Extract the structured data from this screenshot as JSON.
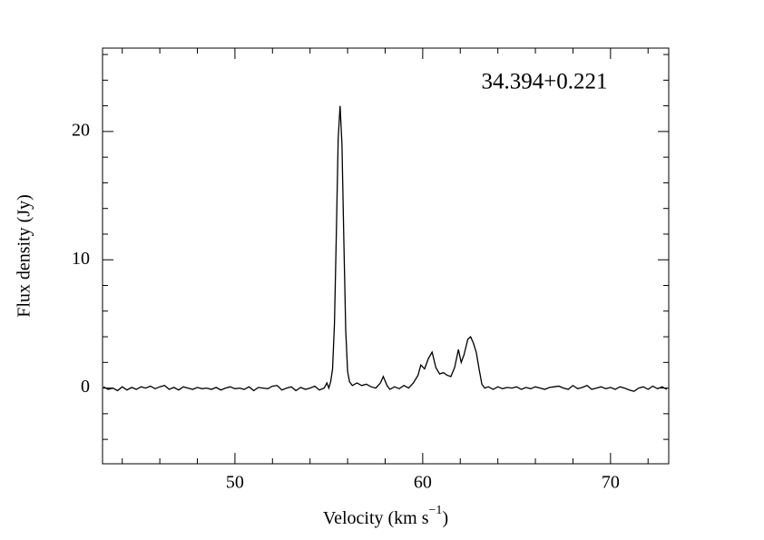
{
  "chart_data": {
    "type": "line",
    "annotation": "34.394+0.221",
    "xlabel": {
      "text": "Velocity (km s",
      "sup": "−1",
      "end": ")"
    },
    "ylabel": "Flux density (Jy)",
    "xlim": [
      42.95,
      73.1
    ],
    "ylim": [
      -5.9,
      26.5
    ],
    "xticks": [
      50,
      60,
      70
    ],
    "yticks": [
      0,
      10,
      20
    ],
    "xminorticks": [
      44,
      46,
      48,
      52,
      54,
      56,
      58,
      62,
      64,
      66,
      68,
      72
    ],
    "yminorticks": [
      -4,
      -2,
      2,
      4,
      6,
      8,
      12,
      14,
      16,
      18,
      22,
      24,
      26
    ],
    "grid": false,
    "x": [
      43,
      43.25,
      43.5,
      43.75,
      44,
      44.25,
      44.5,
      44.75,
      45,
      45.25,
      45.5,
      45.75,
      46,
      46.25,
      46.5,
      46.75,
      47,
      47.25,
      47.5,
      47.75,
      48,
      48.25,
      48.5,
      48.75,
      49,
      49.25,
      49.5,
      49.75,
      50,
      50.25,
      50.5,
      50.75,
      51,
      51.25,
      51.5,
      51.75,
      52,
      52.25,
      52.5,
      52.75,
      53,
      53.25,
      53.5,
      53.75,
      54,
      54.25,
      54.5,
      54.75,
      54.9,
      55.0,
      55.1,
      55.2,
      55.3,
      55.4,
      55.5,
      55.6,
      55.7,
      55.8,
      55.9,
      56.0,
      56.1,
      56.25,
      56.5,
      56.75,
      57,
      57.25,
      57.5,
      57.75,
      57.9,
      58.1,
      58.25,
      58.5,
      58.75,
      59,
      59.25,
      59.5,
      59.75,
      59.9,
      60.1,
      60.3,
      60.5,
      60.7,
      60.9,
      61.1,
      61.3,
      61.5,
      61.7,
      61.9,
      62.05,
      62.2,
      62.4,
      62.55,
      62.7,
      62.85,
      63.0,
      63.15,
      63.3,
      63.5,
      63.75,
      64,
      64.25,
      64.5,
      64.75,
      65,
      65.25,
      65.5,
      65.75,
      66,
      66.25,
      66.5,
      66.75,
      67,
      67.25,
      67.5,
      67.75,
      68,
      68.25,
      68.5,
      68.75,
      69,
      69.25,
      69.5,
      69.75,
      70,
      70.25,
      70.5,
      70.75,
      71,
      71.25,
      71.5,
      71.75,
      72,
      72.25,
      72.5,
      72.75,
      73
    ],
    "series": [
      {
        "color": "#000000",
        "values": [
          0.1,
          -0.1,
          0.0,
          -0.2,
          0.1,
          -0.15,
          0.05,
          -0.1,
          0.1,
          0.0,
          0.15,
          -0.05,
          0.1,
          0.2,
          -0.1,
          0.05,
          -0.15,
          0.1,
          0.0,
          -0.1,
          0.05,
          -0.05,
          0.0,
          -0.1,
          0.05,
          -0.15,
          0.0,
          0.1,
          -0.05,
          0.0,
          -0.1,
          0.1,
          -0.2,
          0.05,
          0.0,
          -0.05,
          0.15,
          0.2,
          -0.15,
          0.0,
          0.1,
          -0.2,
          0.05,
          -0.1,
          0.0,
          0.15,
          -0.15,
          0.0,
          0.4,
          0.0,
          0.5,
          1.5,
          5.0,
          12.0,
          19.5,
          22.0,
          19.0,
          11.5,
          4.5,
          1.3,
          0.5,
          0.2,
          0.4,
          0.2,
          0.3,
          0.1,
          0.0,
          0.4,
          0.9,
          0.2,
          -0.1,
          0.1,
          -0.05,
          0.2,
          0.0,
          0.4,
          1.0,
          1.8,
          1.5,
          2.3,
          2.8,
          1.6,
          1.1,
          1.2,
          1.0,
          0.9,
          1.6,
          3.0,
          2.0,
          2.6,
          3.8,
          4.0,
          3.5,
          2.8,
          1.5,
          0.3,
          0.0,
          0.1,
          -0.1,
          0.1,
          -0.05,
          0.05,
          0.0,
          0.1,
          -0.1,
          0.05,
          -0.05,
          0.1,
          0.0,
          -0.1,
          0.05,
          0.1,
          0.15,
          0.0,
          -0.1,
          0.2,
          -0.05,
          0.05,
          0.2,
          -0.1,
          0.0,
          0.1,
          -0.05,
          0.05,
          -0.1,
          0.1,
          0.0,
          -0.15,
          -0.25,
          0.0,
          0.1,
          -0.1,
          0.15,
          -0.05,
          0.1,
          -0.1
        ]
      }
    ]
  }
}
